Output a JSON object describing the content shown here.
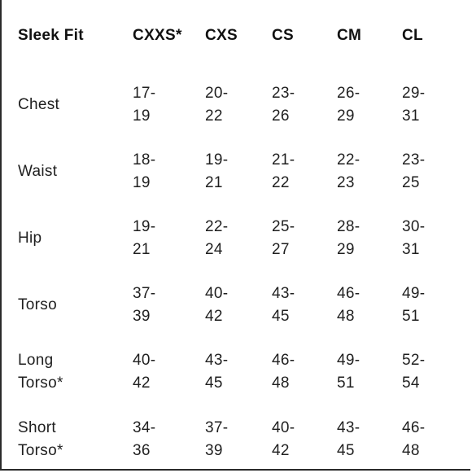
{
  "table": {
    "header": [
      "Sleek Fit",
      "CXXS*",
      "CXS",
      "CS",
      "CM",
      "CL"
    ],
    "rows": [
      {
        "label": "Chest",
        "cells": [
          "17-19",
          "20-\n22",
          "23-\n26",
          "26-\n29",
          "29-31"
        ]
      },
      {
        "label": "Waist",
        "cells": [
          "18-19",
          "19-21",
          "21-22",
          "22-\n23",
          "23-\n25"
        ]
      },
      {
        "label": "Hip",
        "cells": [
          "19-21",
          "22-\n24",
          "25-\n27",
          "28-\n29",
          "30-31"
        ]
      },
      {
        "label": "Torso",
        "cells": [
          "37-39",
          "40-\n42",
          "43-\n45",
          "46-\n48",
          "49-51"
        ]
      },
      {
        "label": "Long\nTorso*",
        "cells": [
          "40-42",
          "43-\n45",
          "46-\n48",
          "49-51",
          "52-\n54"
        ]
      },
      {
        "label": "Short\nTorso*",
        "cells": [
          "34-36",
          "37-\n39",
          "40-\n42",
          "43-\n45",
          "46-\n48"
        ]
      }
    ]
  }
}
